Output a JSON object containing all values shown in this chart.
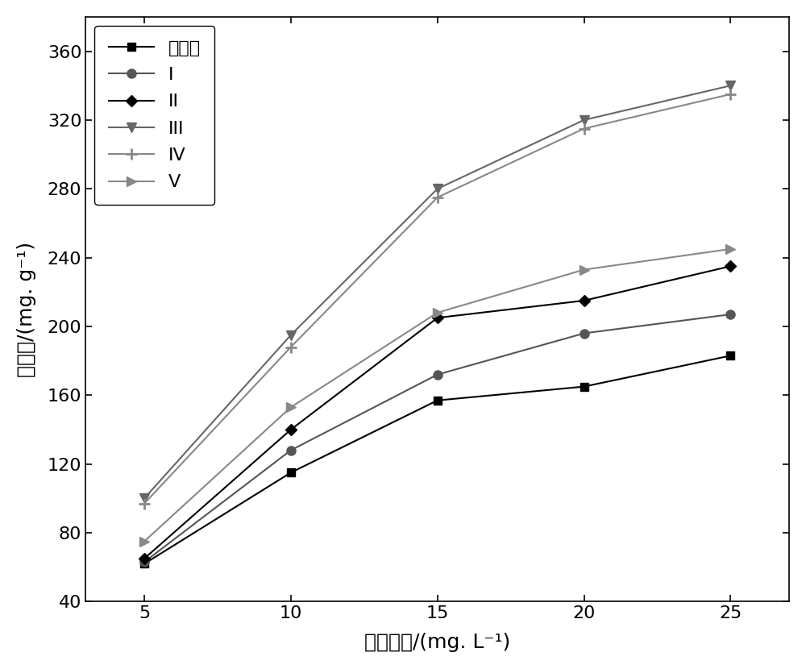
{
  "x": [
    5,
    10,
    15,
    20,
    25
  ],
  "series": {
    "酸改性": {
      "y": [
        62,
        115,
        157,
        165,
        183
      ],
      "color": "#000000",
      "marker": "s",
      "markersize": 7,
      "linestyle": "-",
      "linewidth": 1.5,
      "markerfacecolor": "#000000",
      "markeredgecolor": "#000000",
      "zorder": 3
    },
    "I": {
      "y": [
        63,
        128,
        172,
        196,
        207
      ],
      "color": "#555555",
      "marker": "o",
      "markersize": 8,
      "linestyle": "-",
      "linewidth": 1.5,
      "markerfacecolor": "#555555",
      "markeredgecolor": "#555555",
      "zorder": 3
    },
    "II": {
      "y": [
        65,
        140,
        205,
        215,
        235
      ],
      "color": "#000000",
      "marker": "D",
      "markersize": 7,
      "linestyle": "-",
      "linewidth": 1.5,
      "markerfacecolor": "#000000",
      "markeredgecolor": "#000000",
      "zorder": 3
    },
    "III": {
      "y": [
        100,
        195,
        280,
        320,
        340
      ],
      "color": "#666666",
      "marker": "v",
      "markersize": 9,
      "linestyle": "-",
      "linewidth": 1.5,
      "markerfacecolor": "#666666",
      "markeredgecolor": "#666666",
      "zorder": 3
    },
    "IV": {
      "y": [
        97,
        188,
        275,
        315,
        335
      ],
      "color": "#888888",
      "marker": "plus",
      "markersize": 10,
      "linestyle": "-",
      "linewidth": 1.5,
      "markerfacecolor": "#888888",
      "markeredgecolor": "#888888",
      "zorder": 3
    },
    "V": {
      "y": [
        75,
        153,
        208,
        233,
        245
      ],
      "color": "#888888",
      "marker": ">",
      "markersize": 8,
      "linestyle": "-",
      "linewidth": 1.5,
      "markerfacecolor": "#888888",
      "markeredgecolor": "#888888",
      "zorder": 3
    }
  },
  "xlabel": "平衡浓度/(mg. L⁻¹)",
  "ylabel": "吸附量/(mg. g⁻¹)",
  "xlim": [
    3,
    27
  ],
  "ylim": [
    40,
    380
  ],
  "xticks": [
    5,
    10,
    15,
    20,
    25
  ],
  "yticks": [
    40,
    80,
    120,
    160,
    200,
    240,
    280,
    320,
    360
  ],
  "legend_order": [
    "酸改性",
    "I",
    "II",
    "III",
    "IV",
    "V"
  ],
  "background_color": "#ffffff",
  "axis_fontsize": 18,
  "tick_fontsize": 16,
  "legend_fontsize": 16
}
